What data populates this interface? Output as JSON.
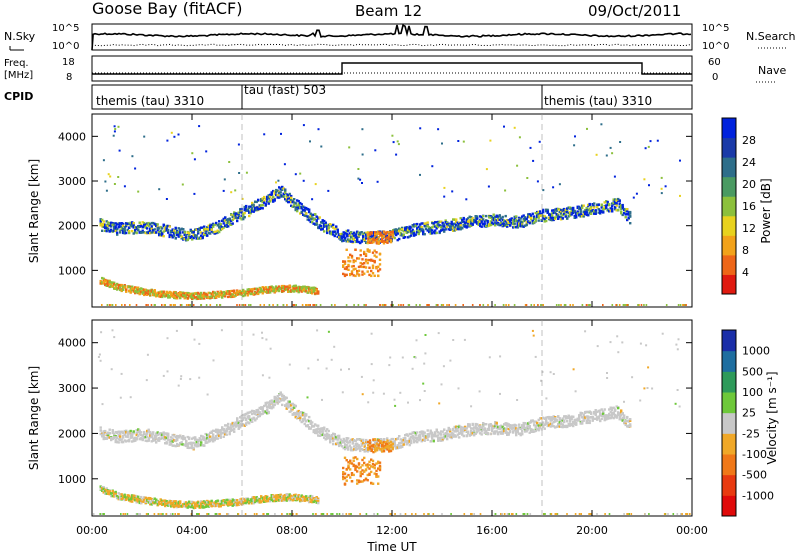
{
  "header": {
    "station": "Goose Bay (fitACF)",
    "beam": "Beam 12",
    "date": "09/Oct/2011"
  },
  "noise_panel": {
    "left_label": "N.Sky",
    "right_label": "N.Search",
    "left_ticks": [
      "10^5",
      "10^0"
    ],
    "right_ticks": [
      "10^5",
      "10^0"
    ]
  },
  "freq_panel": {
    "left_label_1": "Freq.",
    "left_label_2": "[MHz]",
    "right_label": "Nave",
    "left_ticks": [
      "18",
      "8"
    ],
    "right_ticks": [
      "60",
      "0"
    ]
  },
  "cpid_panel": {
    "label": "CPID",
    "segments": [
      "themis (tau) 3310",
      "tau (fast) 503",
      "themis (tau) 3310"
    ]
  },
  "power_panel": {
    "ylabel": "Slant Range [km]",
    "y_ticks": [
      "4000",
      "3000",
      "2000",
      "1000"
    ],
    "colorbar_label": "Power [dB]",
    "colorbar_ticks": [
      "28",
      "24",
      "20",
      "16",
      "12",
      "8",
      "4"
    ],
    "colors": [
      "#0022dd",
      "#1a3aa8",
      "#2e6e8a",
      "#4a9a62",
      "#8cc03c",
      "#e8d21e",
      "#f2a21a",
      "#ee6618",
      "#e01a10"
    ]
  },
  "velocity_panel": {
    "ylabel": "Slant Range [km]",
    "y_ticks": [
      "4000",
      "3000",
      "2000",
      "1000"
    ],
    "colorbar_label": "Velocity [m s⁻¹]",
    "colorbar_ticks": [
      "1000",
      "500",
      "100",
      "25",
      "-25",
      "-100",
      "-500",
      "-1000"
    ],
    "colors": [
      "#1a2ea8",
      "#1e6ea0",
      "#2e9a5a",
      "#6ec83a",
      "#c8c8c8",
      "#f0a828",
      "#f07818",
      "#e83a10",
      "#e00a0a"
    ]
  },
  "x_axis": {
    "ticks": [
      "00:00",
      "04:00",
      "08:00",
      "12:00",
      "16:00",
      "20:00",
      "00:00"
    ],
    "label": "Time UT"
  },
  "chart_data": {
    "type": "heatmap",
    "x_range_hours": [
      0,
      24
    ],
    "y_range_km": [
      180,
      4500
    ],
    "power_series": [
      {
        "t": [
          0.3,
          1,
          2,
          3,
          4,
          5,
          6,
          7,
          7.5,
          8,
          9,
          10,
          11,
          12,
          13,
          14,
          15,
          16,
          17,
          18,
          19,
          20,
          21,
          21.5
        ],
        "range_km": [
          2050,
          1950,
          2000,
          1900,
          1800,
          2000,
          2300,
          2600,
          2800,
          2550,
          2100,
          1800,
          1750,
          1800,
          1950,
          2000,
          2100,
          2150,
          2100,
          2250,
          2300,
          2400,
          2500,
          2200
        ]
      },
      {
        "t": [
          0.3,
          1,
          2,
          3,
          4,
          5,
          6,
          7,
          8,
          9
        ],
        "range_km": [
          800,
          650,
          550,
          480,
          450,
          480,
          520,
          600,
          620,
          560
        ]
      }
    ],
    "velocity_bands": [
      {
        "t_start": 10.0,
        "t_end": 11.5,
        "range_km": [
          900,
          1500
        ],
        "velocity": "-100"
      },
      {
        "t_start": 11.0,
        "t_end": 12.0,
        "range_km": [
          1600,
          1900
        ],
        "velocity": "-100"
      }
    ]
  }
}
